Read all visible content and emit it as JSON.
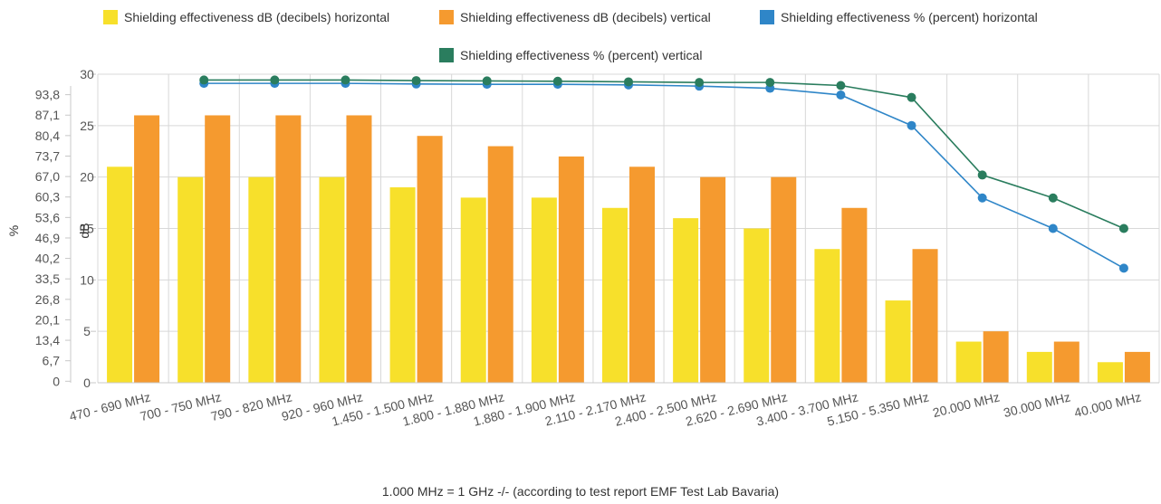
{
  "chart_data": {
    "type": "bar",
    "title": "",
    "footnote": "1.000 MHz = 1 GHz -/- (according to test report EMF Test Lab Bavaria)",
    "categories": [
      "470 - 690 MHz",
      "700 - 750 MHz",
      "790 - 820 MHz",
      "920 - 960 MHz",
      "1.450 - 1.500 MHz",
      "1.800 - 1.880 MHz",
      "1.880 - 1.900 MHz",
      "2.110 - 2.170 MHz",
      "2.400 - 2.500 MHz",
      "2.620 - 2.690 MHz",
      "3.400 - 3.700 MHz",
      "5.150 - 5.350 MHz",
      "20.000 MHz",
      "30.000 MHz",
      "40.000 MHz"
    ],
    "axes": {
      "db": {
        "label": "dB",
        "ticks": [
          0,
          5,
          10,
          15,
          20,
          25,
          30
        ],
        "range": [
          0,
          30
        ]
      },
      "percent": {
        "label": "%",
        "ticks": [
          "0",
          "6,7",
          "13,4",
          "20,1",
          "26,8",
          "33,5",
          "40,2",
          "46,9",
          "53,6",
          "60,3",
          "67,0",
          "73,7",
          "80,4",
          "87,1",
          "93,8"
        ],
        "range": [
          -0.5,
          100.5
        ]
      }
    },
    "grid": true,
    "legend_position": "top",
    "series": [
      {
        "name": "Shielding effectiveness dB (decibels) horizontal",
        "type": "bar",
        "axis": "db",
        "color": "#f7e02b",
        "values": [
          21,
          20,
          20,
          20,
          19,
          18,
          18,
          17,
          16,
          15,
          13,
          8,
          4,
          3,
          2
        ]
      },
      {
        "name": "Shielding effectiveness dB (decibels) vertical",
        "type": "bar",
        "axis": "db",
        "color": "#f59a2f",
        "values": [
          26,
          26,
          26,
          26,
          24,
          23,
          22,
          21,
          20,
          20,
          17,
          13,
          5,
          4,
          3
        ]
      },
      {
        "name": "Shielding effectiveness % (percent) horizontal",
        "type": "line",
        "axis": "percent",
        "color": "#2f86c8",
        "values": [
          null,
          97.5,
          97.5,
          97.5,
          97.3,
          97.2,
          97.2,
          97.0,
          96.6,
          95.9,
          93.7,
          83.7,
          60.0,
          50.0,
          37.0
        ]
      },
      {
        "name": "Shielding effectiveness % (percent) vertical",
        "type": "line",
        "axis": "percent",
        "color": "#2a7d5e",
        "values": [
          null,
          98.6,
          98.6,
          98.6,
          98.4,
          98.3,
          98.2,
          98.0,
          97.8,
          97.8,
          96.8,
          92.9,
          67.5,
          60.0,
          50.0
        ]
      }
    ]
  }
}
